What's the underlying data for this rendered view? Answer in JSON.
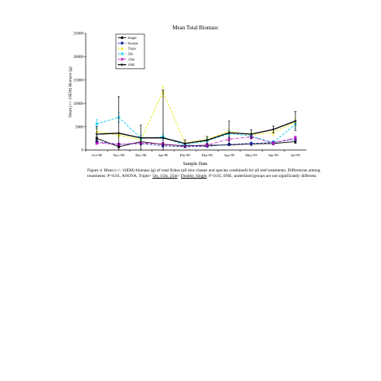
{
  "chart_data": {
    "type": "line",
    "title": "Mean Total Biomass",
    "xlabel": "Sample Date",
    "ylabel": "Mean (+/- 1SEM) Biomass (g)",
    "categories": [
      "Oct-98",
      "Nov-98",
      "Dec-98",
      "Jan-99",
      "Feb-99",
      "Mar-99",
      "Apr-99",
      "May-99",
      "Jun-99",
      "Jul-99"
    ],
    "ylim": [
      0,
      25000
    ],
    "yticks": [
      "0",
      "5000",
      "10000",
      "15000",
      "20000",
      "25000"
    ],
    "grid": false,
    "legend_position": "top-left",
    "series": [
      {
        "name": "Single",
        "color": "#000000",
        "dash": "solid",
        "marker": "circle",
        "values": [
          2500,
          700,
          1800,
          1200,
          900,
          1000,
          1100,
          1300,
          1400,
          1800
        ],
        "err": [
          400,
          200,
          300,
          300,
          200,
          200,
          200,
          300,
          300,
          400
        ]
      },
      {
        "name": "Double",
        "color": "#1a2ea8",
        "dash": "dash",
        "marker": "square",
        "values": [
          1800,
          1200,
          1400,
          900,
          700,
          800,
          1200,
          1400,
          1600,
          2300
        ],
        "err": [
          300,
          300,
          300,
          200,
          200,
          200,
          300,
          300,
          300,
          400
        ]
      },
      {
        "name": "Triple",
        "color": "#e8e800",
        "dash": "dash",
        "marker": "triangle",
        "values": [
          4000,
          3200,
          2200,
          12500,
          1500,
          2300,
          4000,
          3200,
          3800,
          6000
        ],
        "err": [
          600,
          500,
          500,
          1000,
          400,
          500,
          600,
          500,
          600,
          800
        ]
      },
      {
        "name": "5M",
        "color": "#00c8f0",
        "dash": "dash",
        "marker": "x",
        "values": [
          5600,
          7000,
          2500,
          2800,
          1000,
          2000,
          3500,
          3000,
          1600,
          5500
        ],
        "err": [
          900,
          1000,
          600,
          600,
          300,
          500,
          700,
          600,
          400,
          800
        ]
      },
      {
        "name": "15M",
        "color": "#c000c0",
        "dash": "dashdot",
        "marker": "asterisk",
        "values": [
          1500,
          1200,
          1500,
          1300,
          800,
          1100,
          2300,
          2800,
          1500,
          2600
        ],
        "err": [
          300,
          300,
          300,
          300,
          200,
          300,
          400,
          400,
          300,
          400
        ]
      },
      {
        "name": "25M",
        "color": "#000000",
        "dash": "solid",
        "marker": "plus",
        "bold": true,
        "values": [
          3400,
          3600,
          2600,
          2600,
          1400,
          2100,
          3700,
          3400,
          4400,
          6200
        ],
        "err": [
          1600,
          7800,
          2700,
          10200,
          800,
          800,
          2500,
          900,
          700,
          2000
        ]
      }
    ]
  },
  "caption": {
    "text1": "Figure 4.  Mean (+/- 1SEM) biomass (g) of total fishes (all size classes and species combined) for all reef treatments.  Differences among treatments:  P<0.01, ANOVA; Triple>  ",
    "underline1": "5m, 15m, 25m",
    "text2": "> ",
    "underline2": "Double, Single",
    "text3": ", P<0.05, SNK, underlined groups are not significantly different."
  }
}
